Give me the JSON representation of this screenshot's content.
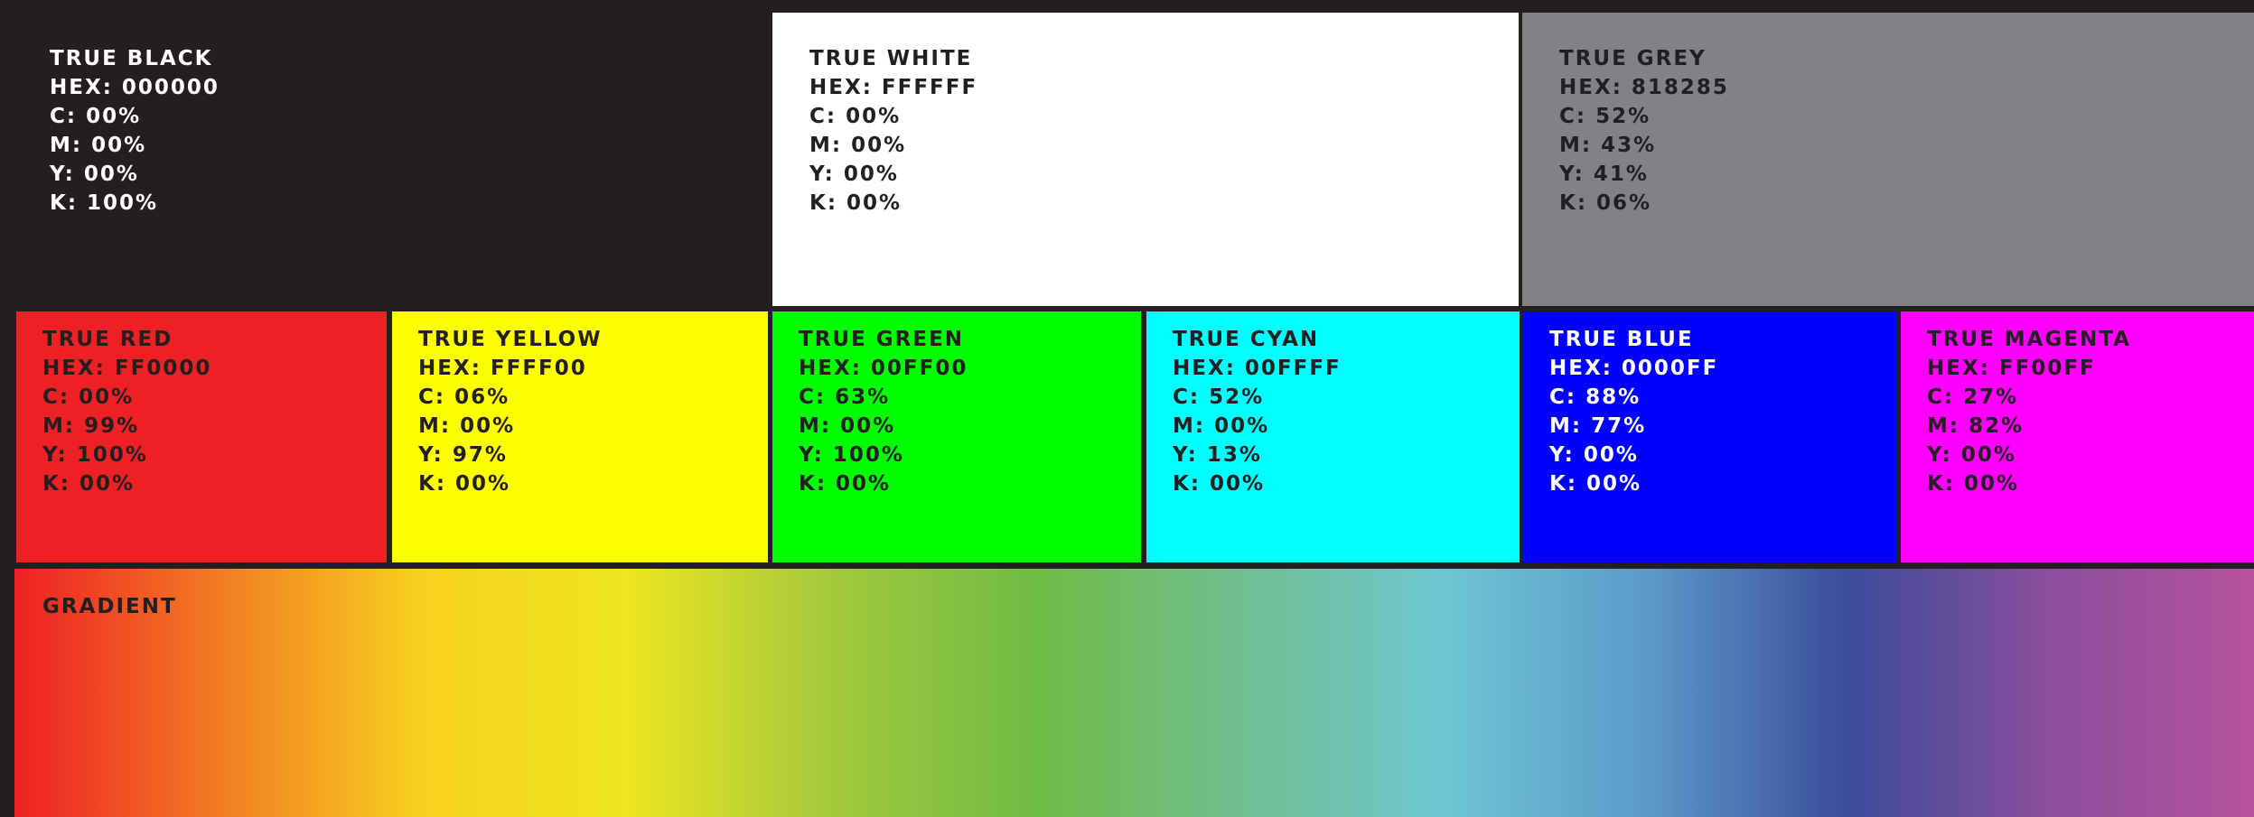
{
  "swatches": {
    "black": {
      "name": "TRUE BLACK",
      "hex": "HEX: 000000",
      "c": "C: 00%",
      "m": "M: 00%",
      "y": "Y: 00%",
      "k": "K: 100%",
      "fill": "#231f20",
      "text_color": "#ffffff"
    },
    "white": {
      "name": "TRUE WHITE",
      "hex": "HEX: FFFFFF",
      "c": "C: 00%",
      "m": "M: 00%",
      "y": "Y: 00%",
      "k": "K: 00%",
      "fill": "#ffffff",
      "text_color": "#231f20"
    },
    "grey": {
      "name": "TRUE GREY",
      "hex": "HEX: 818285",
      "c": "C: 52%",
      "m": "M: 43%",
      "y": "Y: 41%",
      "k": "K: 06%",
      "fill": "#818285",
      "text_color": "#231f20"
    },
    "red": {
      "name": "TRUE RED",
      "hex": "HEX: FF0000",
      "c": "C: 00%",
      "m": "M: 99%",
      "y": "Y: 100%",
      "k": "K: 00%",
      "fill": "#ed2024",
      "text_color": "#231f20"
    },
    "yellow": {
      "name": "TRUE YELLOW",
      "hex": "HEX: FFFF00",
      "c": "C: 06%",
      "m": "M: 00%",
      "y": "Y: 97%",
      "k": "K: 00%",
      "fill": "#ffff00",
      "text_color": "#231f20"
    },
    "green": {
      "name": "TRUE GREEN",
      "hex": "HEX: 00FF00",
      "c": "C: 63%",
      "m": "M: 00%",
      "y": "Y: 100%",
      "k": "K: 00%",
      "fill": "#00ff00",
      "text_color": "#231f20"
    },
    "cyan": {
      "name": "TRUE CYAN",
      "hex": "HEX: 00FFFF",
      "c": "C: 52%",
      "m": "M: 00%",
      "y": "Y: 13%",
      "k": "K: 00%",
      "fill": "#00ffff",
      "text_color": "#231f20"
    },
    "blue": {
      "name": "TRUE BLUE",
      "hex": "HEX: 0000FF",
      "c": "C: 88%",
      "m": "M: 77%",
      "y": "Y: 00%",
      "k": "K: 00%",
      "fill": "#0000ff",
      "text_color": "#ffffff"
    },
    "magenta": {
      "name": "TRUE MAGENTA",
      "hex": "HEX: FF00FF",
      "c": "C: 27%",
      "m": "M: 82%",
      "y": "Y: 00%",
      "k": "K: 00%",
      "fill": "#ff00ff",
      "text_color": "#231f20"
    }
  },
  "gradient": {
    "label": "GRADIENT",
    "text_color": "#231f20",
    "stops": [
      "#ed2024",
      "#f37b23",
      "#f7d11e",
      "#eee620",
      "#a4c93c",
      "#6fbc44",
      "#6fbf8e",
      "#6fc7d1",
      "#5b9bcb",
      "#3c4b9c",
      "#8a4f9d",
      "#b7529b"
    ]
  }
}
